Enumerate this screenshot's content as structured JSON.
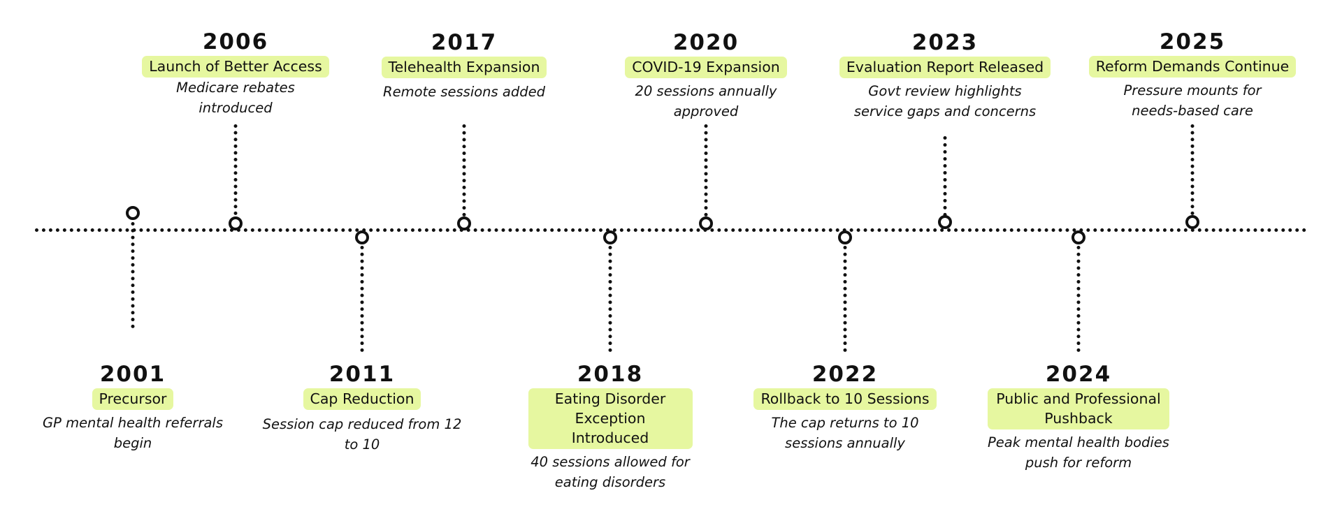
{
  "timeline": {
    "events": [
      {
        "year": "2006",
        "label": "Launch of Better Access",
        "description": "Medicare rebates introduced"
      },
      {
        "year": "2017",
        "label": "Telehealth Expansion",
        "description": "Remote sessions added"
      },
      {
        "year": "2020",
        "label": "COVID-19 Expansion",
        "description": "20 sessions annually approved"
      },
      {
        "year": "2023",
        "label": "Evaluation Report Released",
        "description": "Govt review highlights service gaps and concerns"
      },
      {
        "year": "2025",
        "label": "Reform Demands Continue",
        "description": "Pressure mounts for needs-based care"
      },
      {
        "year": "2001",
        "label": "Precursor",
        "description": "GP mental health referrals begin"
      },
      {
        "year": "2011",
        "label": "Cap Reduction",
        "description": "Session cap reduced from 12 to 10"
      },
      {
        "year": "2018",
        "label": "Eating Disorder Exception Introduced",
        "description": "40 sessions allowed for eating disorders"
      },
      {
        "year": "2022",
        "label": "Rollback to 10 Sessions",
        "description": "The cap returns to 10 sessions annually"
      },
      {
        "year": "2024",
        "label": "Public and Professional Pushback",
        "description": "Peak mental health bodies push for reform"
      }
    ]
  }
}
